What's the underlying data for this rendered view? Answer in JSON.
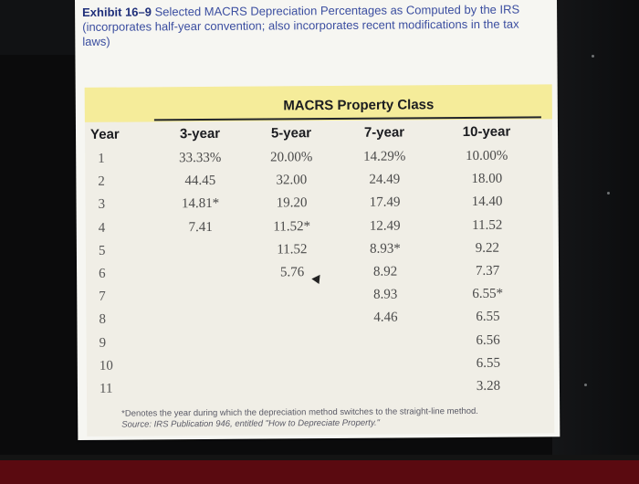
{
  "exhibit": {
    "label": "Exhibit 16–9",
    "caption": " Selected MACRS Depreciation Percentages as Computed by the IRS (incorporates half-year convention; also incorporates recent modifications in the tax laws)"
  },
  "table": {
    "group_title": "MACRS Property Class",
    "year_header": "Year",
    "columns": [
      "3-year",
      "5-year",
      "7-year",
      "10-year"
    ],
    "rows": [
      {
        "year": "1",
        "values": [
          "33.33%",
          "20.00%",
          "14.29%",
          "10.00%"
        ]
      },
      {
        "year": "2",
        "values": [
          "44.45",
          "32.00",
          "24.49",
          "18.00"
        ]
      },
      {
        "year": "3",
        "values": [
          "14.81*",
          "19.20",
          "17.49",
          "14.40"
        ]
      },
      {
        "year": "4",
        "values": [
          "7.41",
          "11.52*",
          "12.49",
          "11.52"
        ]
      },
      {
        "year": "5",
        "values": [
          "",
          "11.52",
          "8.93*",
          "9.22"
        ]
      },
      {
        "year": "6",
        "values": [
          "",
          "5.76",
          "8.92",
          "7.37"
        ]
      },
      {
        "year": "7",
        "values": [
          "",
          "",
          "8.93",
          "6.55*"
        ]
      },
      {
        "year": "8",
        "values": [
          "",
          "",
          "4.46",
          "6.55"
        ]
      },
      {
        "year": "9",
        "values": [
          "",
          "",
          "",
          "6.56"
        ]
      },
      {
        "year": "10",
        "values": [
          "",
          "",
          "",
          "6.55"
        ]
      },
      {
        "year": "11",
        "values": [
          "",
          "",
          "",
          "3.28"
        ]
      }
    ]
  },
  "footnote": {
    "line1": "*Denotes the year during which the depreciation method switches to the straight-line method.",
    "line2": "Source: IRS Publication 946, entitled \"How to Depreciate Property.\""
  },
  "colors": {
    "header_band": "#f5ec9a",
    "caption_text": "#3b4ea0",
    "page": "#f6f6f2",
    "bottom_bar": "#5a0a10"
  }
}
